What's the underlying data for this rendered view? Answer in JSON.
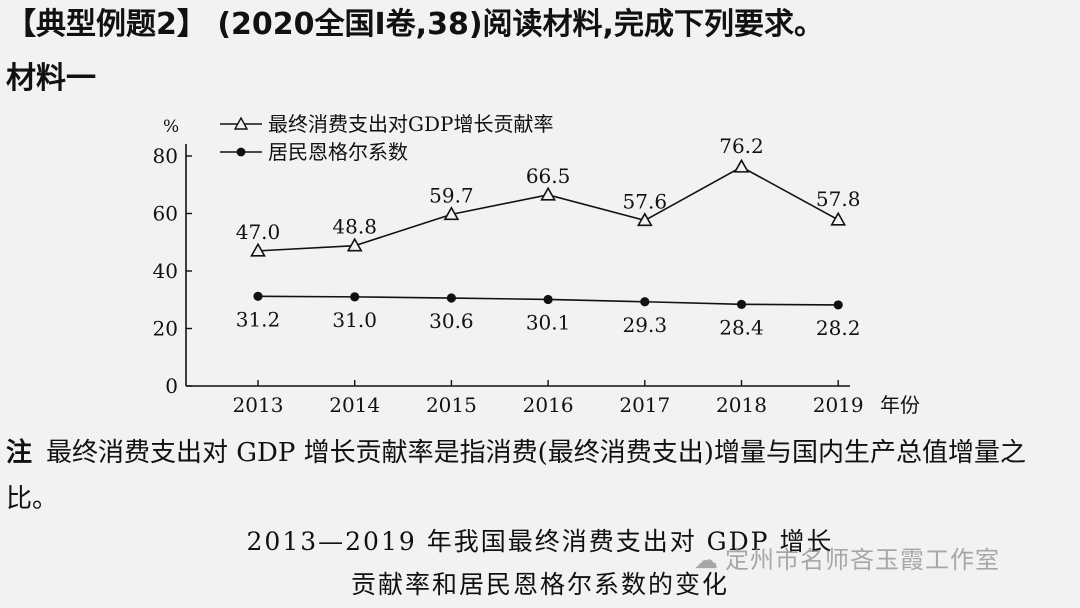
{
  "header": {
    "line1": "【典型例题2】 (2020全国Ⅰ卷,38)阅读材料,完成下列要求。",
    "line2": "材料一"
  },
  "note": {
    "tag": "注",
    "text": "最终消费支出对 GDP 增长贡献率是指消费(最终消费支出)增量与国内生产总值增量之比。"
  },
  "caption": {
    "line1": "2013—2019 年我国最终消费支出对 GDP 增长",
    "line2": "贡献率和居民恩格尔系数的变化"
  },
  "watermark": {
    "text": "定州市名师吝玉霞工作室",
    "icon": "wechat-icon"
  },
  "chart_data": {
    "type": "line",
    "x": [
      2013,
      2014,
      2015,
      2016,
      2017,
      2018,
      2019
    ],
    "x_tick_labels": [
      "2013",
      "2014",
      "2015",
      "2016",
      "2017",
      "2018",
      "2019"
    ],
    "xlabel": "年份",
    "ylabel": "%",
    "ylim": [
      0,
      80
    ],
    "yticks": [
      0,
      20,
      40,
      60,
      80
    ],
    "ytick_labels": [
      "0",
      "20",
      "40",
      "60",
      "80"
    ],
    "grid": false,
    "legend_position": "top-left",
    "series": [
      {
        "name": "最终消费支出对GDP增长贡献率",
        "marker": "triangle",
        "values": [
          47.0,
          48.8,
          59.7,
          66.5,
          57.6,
          76.2,
          57.8
        ],
        "labels": [
          "47.0",
          "48.8",
          "59.7",
          "66.5",
          "57.6",
          "76.2",
          "57.8"
        ]
      },
      {
        "name": "居民恩格尔系数",
        "marker": "circle",
        "values": [
          31.2,
          31.0,
          30.6,
          30.1,
          29.3,
          28.4,
          28.2
        ],
        "labels": [
          "31.2",
          "31.0",
          "30.6",
          "30.1",
          "29.3",
          "28.4",
          "28.2"
        ]
      }
    ]
  }
}
